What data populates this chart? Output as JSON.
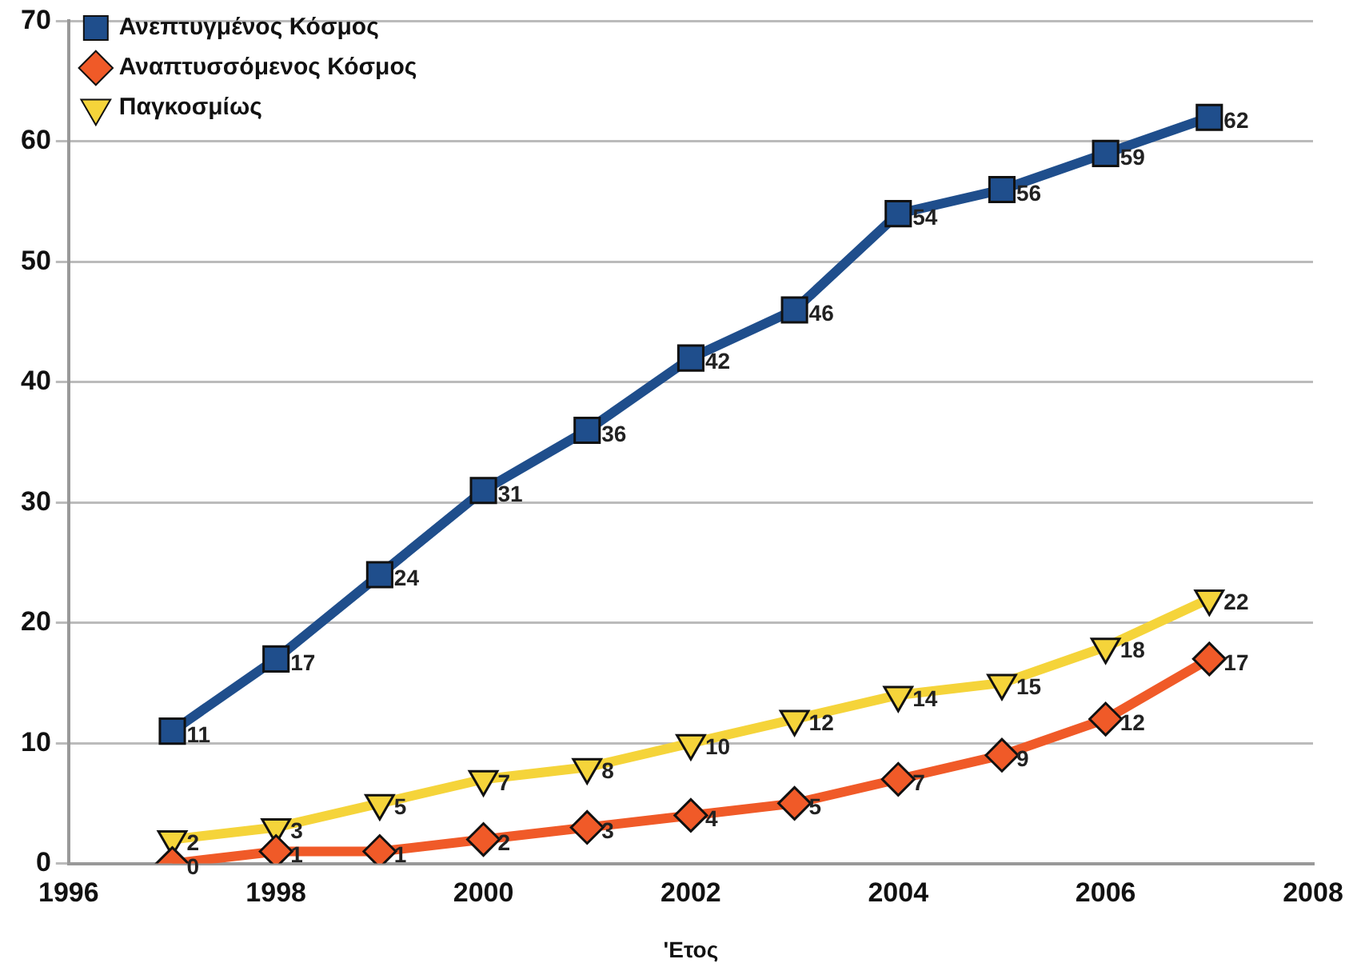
{
  "chart_data": {
    "type": "line",
    "xlabel": "'Ετος",
    "x": [
      1997,
      1998,
      1999,
      2000,
      2001,
      2002,
      2003,
      2004,
      2005,
      2006,
      2007
    ],
    "series": [
      {
        "name": "Ανεπτυγμένος Κόσμος",
        "color": "#1f4e8c",
        "marker": "square",
        "values": [
          11,
          17,
          24,
          31,
          36,
          42,
          46,
          54,
          56,
          59,
          62
        ]
      },
      {
        "name": "Αναπτυσσόμενος Κόσμος",
        "color": "#f05a28",
        "marker": "diamond",
        "values": [
          0,
          1,
          1,
          2,
          3,
          4,
          5,
          7,
          9,
          12,
          17
        ]
      },
      {
        "name": "Παγκοσμίως",
        "color": "#f5d43a",
        "marker": "triangle",
        "values": [
          2,
          3,
          5,
          7,
          8,
          10,
          12,
          14,
          15,
          18,
          22
        ]
      }
    ],
    "xlim": [
      1996,
      2008
    ],
    "xticks": [
      1996,
      1998,
      2000,
      2002,
      2004,
      2006,
      2008
    ],
    "ylim": [
      0,
      70
    ],
    "yticks": [
      0,
      10,
      20,
      30,
      40,
      50,
      60,
      70
    ],
    "grid": "y",
    "legend": "top left",
    "data_labels": true
  }
}
